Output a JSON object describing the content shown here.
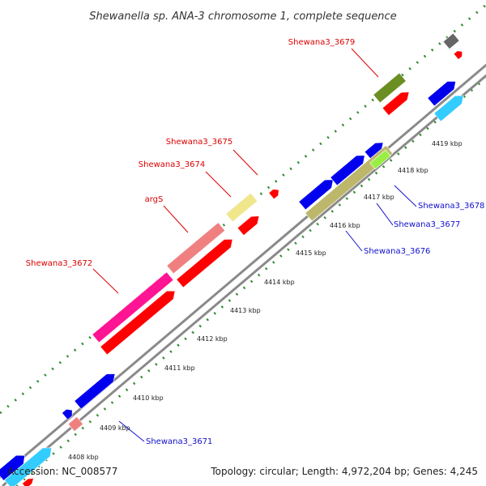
{
  "title": "Shewanella sp. ANA-3 chromosome 1, complete sequence",
  "footer": {
    "accession": "Accession: NC_008577",
    "summary": "Topology: circular; Length: 4,972,204 bp; Genes: 4,245"
  },
  "ticks": [
    "4408 kbp",
    "4409 kbp",
    "4410 kbp",
    "4411 kbp",
    "4412 kbp",
    "4413 kbp",
    "4414 kbp",
    "4415 kbp",
    "4416 kbp",
    "4417 kbp",
    "4418 kbp",
    "4419 kbp"
  ],
  "gene_labels": {
    "g3679": "Shewana3_3679",
    "g3675": "Shewana3_3675",
    "g3674": "Shewana3_3674",
    "argS": "argS",
    "g3672": "Shewana3_3672",
    "g3678": "Shewana3_3678",
    "g3677": "Shewana3_3677",
    "g3676": "Shewana3_3676",
    "g3671": "Shewana3_3671"
  },
  "colors": {
    "backbone": "#8a8a8a",
    "dotted_track": "#2e8b2e",
    "red_label": "#dd0000",
    "blue_label": "#1010cc",
    "red": "#ff0000",
    "blue": "#0000ee",
    "cyan": "#33ccff",
    "olive": "#6b8e23",
    "khaki": "#bdb76b",
    "pink": "#f08080",
    "magenta": "#ff1493",
    "cream": "#f0e68c",
    "grey": "#666666",
    "lime": "#99ee44"
  }
}
